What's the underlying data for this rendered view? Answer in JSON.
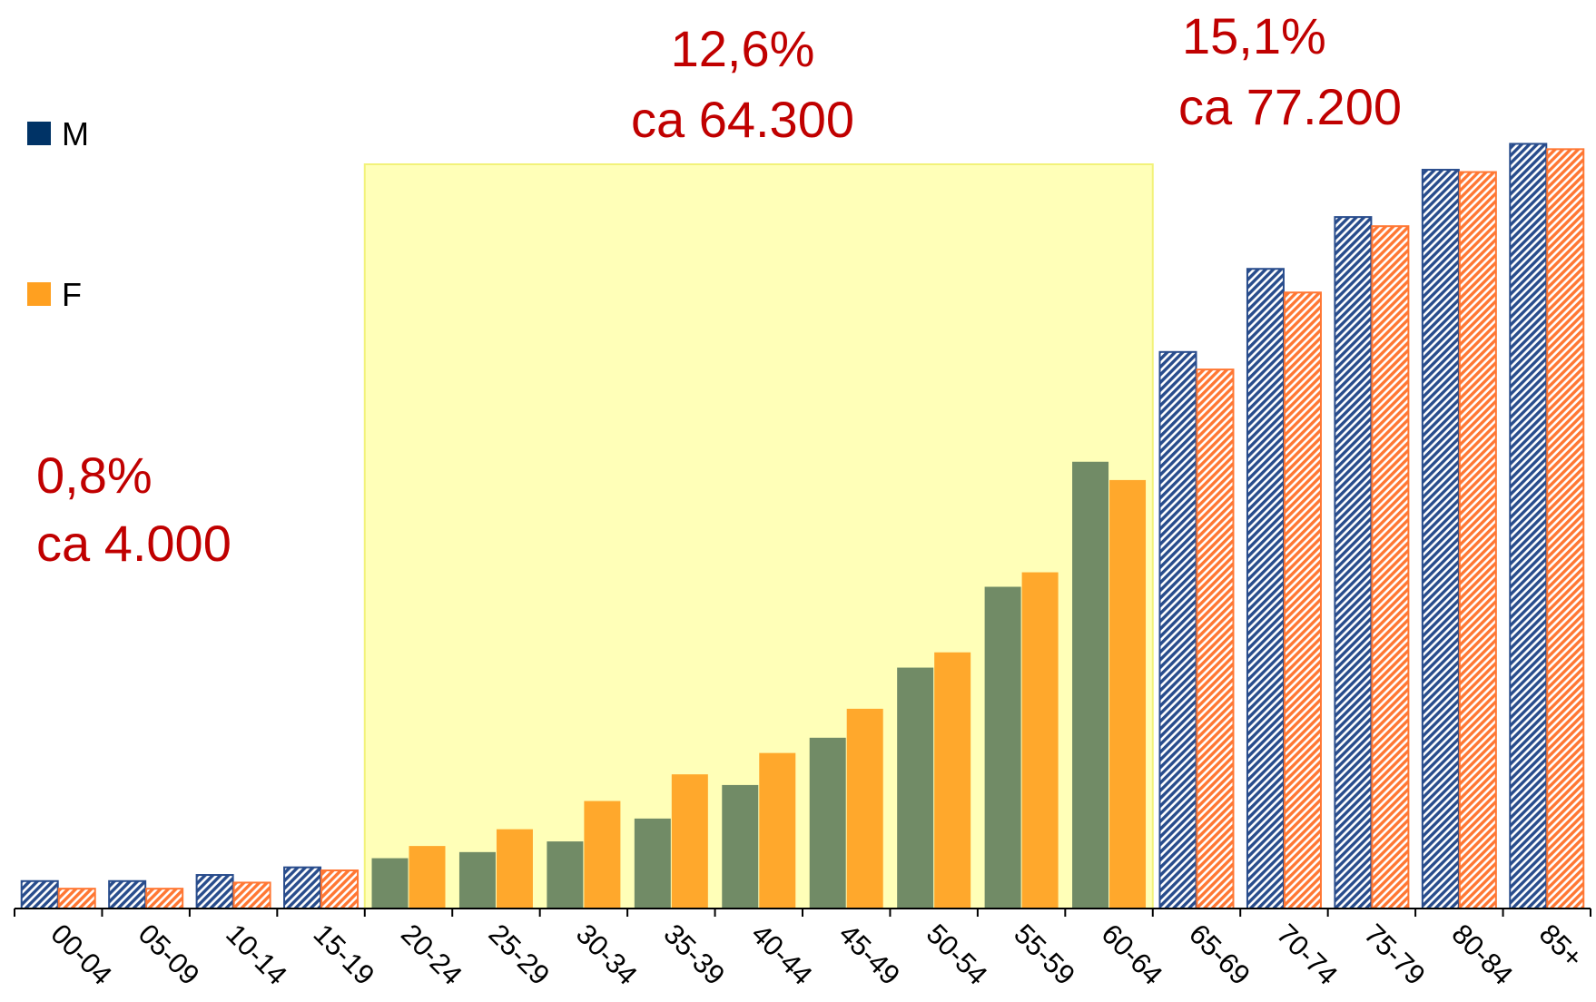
{
  "chart_data": {
    "type": "bar",
    "title": "",
    "xlabel": "",
    "ylabel": "",
    "ylim": [
      0,
      100
    ],
    "grid": false,
    "legend_placement": "left",
    "categories": [
      "00-04",
      "05-09",
      "10-14",
      "15-19",
      "20-24",
      "25-29",
      "30-34",
      "35-39",
      "40-44",
      "45-49",
      "50-54",
      "55-59",
      "60-64",
      "65-69",
      "70-74",
      "75-79",
      "80-84",
      "85+"
    ],
    "series": [
      {
        "name": "M",
        "color": "#003366",
        "values": [
          3.6,
          3.6,
          4.4,
          5.4,
          6.6,
          7.4,
          8.8,
          11.8,
          16.2,
          22.4,
          31.6,
          42.2,
          58.6,
          73.0,
          83.9,
          90.7,
          96.9,
          100.3
        ]
      },
      {
        "name": "F",
        "color": "#ffa020",
        "values": [
          2.6,
          2.6,
          3.4,
          5.0,
          8.2,
          10.4,
          14.1,
          17.6,
          20.4,
          26.2,
          33.6,
          44.1,
          56.2,
          70.7,
          80.8,
          89.5,
          96.6,
          99.6
        ]
      }
    ],
    "highlight": {
      "from": "20-24",
      "to": "60-64",
      "color": "#ffffb8"
    },
    "highlight_colors": {
      "M": "#718b66",
      "F": "#ffa82c"
    },
    "pattern_colors": {
      "M": "#284c8c",
      "F": "#ff7733"
    },
    "annotations": [
      {
        "id": "young",
        "lines": [
          "0,8%",
          "ca 4.000"
        ]
      },
      {
        "id": "middle",
        "lines": [
          "12,6%",
          "ca 64.300"
        ]
      },
      {
        "id": "old",
        "lines": [
          "15,1%",
          "ca 77.200"
        ]
      }
    ]
  },
  "legend": [
    {
      "label": "M",
      "color": "#003366"
    },
    {
      "label": "F",
      "color": "#ffa020"
    }
  ]
}
